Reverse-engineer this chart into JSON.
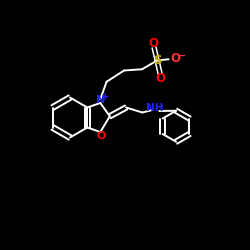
{
  "bg_color": "#000000",
  "bond_color": "#ffffff",
  "N_color": "#2222ff",
  "O_color": "#ff0000",
  "S_color": "#ccaa00",
  "Oneg_color": "#ff3333",
  "fig_width": 2.5,
  "fig_height": 2.5,
  "dpi": 100,
  "xlim": [
    0,
    10
  ],
  "ylim": [
    0,
    10
  ]
}
